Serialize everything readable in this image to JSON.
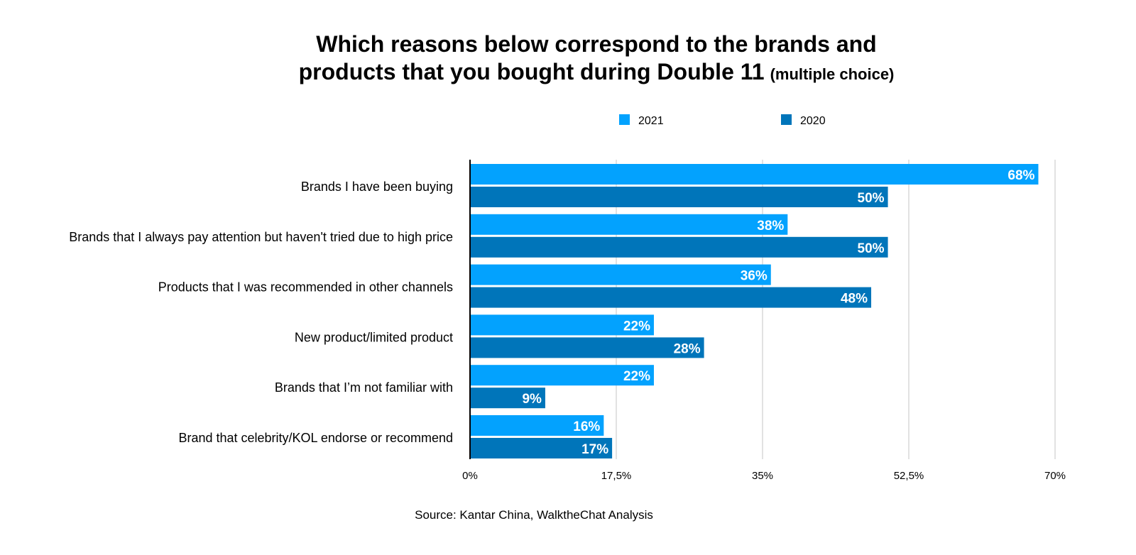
{
  "chart_data": {
    "type": "bar",
    "orientation": "horizontal",
    "title_line1": "Which reasons below correspond to the brands and",
    "title_line2": "products that you bought during Double 11",
    "subtitle": "(multiple choice)",
    "source": "Source: Kantar China, WalktheChat Analysis",
    "categories": [
      "Brands I have been buying",
      "Brands that I always pay attention but haven't tried due to high price",
      "Products that I was recommended in other channels",
      "New product/limited product",
      "Brands that I’m not familiar with",
      "Brand that celebrity/KOL endorse or recommend"
    ],
    "series": [
      {
        "name": "2021",
        "color": "#03a2fe",
        "values": [
          68,
          38,
          36,
          22,
          22,
          16
        ]
      },
      {
        "name": "2020",
        "color": "#0075ba",
        "values": [
          50,
          50,
          48,
          28,
          9,
          17
        ]
      }
    ],
    "xlim": [
      0,
      70
    ],
    "xticks": [
      0,
      17.5,
      35,
      52.5,
      70
    ],
    "xtick_labels": [
      "0%",
      "17,5%",
      "35%",
      "52,5%",
      "70%"
    ],
    "grid": true,
    "legend_position": "top",
    "data_labels": true
  }
}
